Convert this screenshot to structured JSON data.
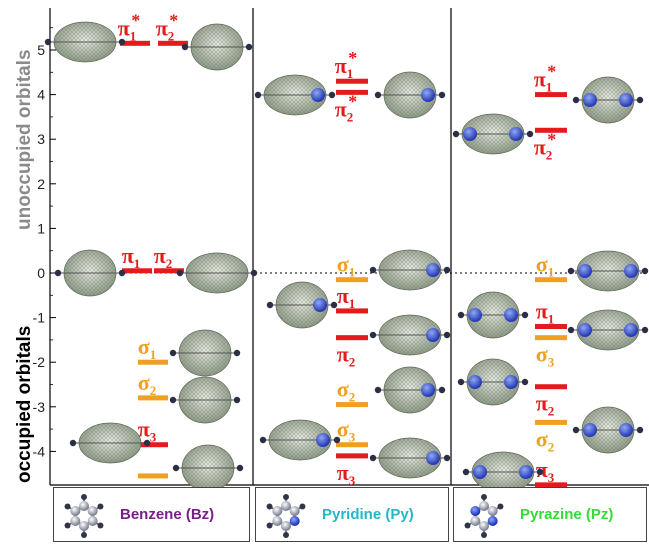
{
  "axis": {
    "ylabel_upper": "unoccupied orbitals",
    "ylabel_lower": "occupied orbitals",
    "ticks": [
      "5",
      "4",
      "3",
      "2",
      "1",
      "0",
      "-1",
      "-2",
      "-3",
      "-4"
    ]
  },
  "colors": {
    "pi_level": "#e41a1c",
    "sigma_level": "#f0a020",
    "ylabel_upper": "#8a8a8a",
    "ylabel_lower": "#000000",
    "benzene": "#7a1f8a",
    "pyridine": "#22b8c8",
    "pyrazine": "#33dd33"
  },
  "panels": [
    {
      "name": "Benzene (Bz)",
      "levels": [
        {
          "label": "π",
          "sub": "1",
          "star": true,
          "energy": 5.15,
          "kind": "pi"
        },
        {
          "label": "π",
          "sub": "2",
          "star": true,
          "energy": 5.15,
          "kind": "pi"
        },
        {
          "label": "π",
          "sub": "1",
          "star": false,
          "energy": 0.05,
          "kind": "pi"
        },
        {
          "label": "π",
          "sub": "2",
          "star": false,
          "energy": 0.05,
          "kind": "pi"
        },
        {
          "label": "σ",
          "sub": "1",
          "star": false,
          "energy": -2.0,
          "kind": "sigma"
        },
        {
          "label": "σ",
          "sub": "2",
          "star": false,
          "energy": -2.8,
          "kind": "sigma"
        },
        {
          "label": "π",
          "sub": "3",
          "star": false,
          "energy": -3.85,
          "kind": "pi"
        },
        {
          "label": "σ",
          "sub": "3",
          "star": false,
          "energy": -4.55,
          "kind": "sigma"
        }
      ]
    },
    {
      "name": "Pyridine (Py)",
      "levels": [
        {
          "label": "π",
          "sub": "1",
          "star": true,
          "energy": 4.3,
          "kind": "pi"
        },
        {
          "label": "π",
          "sub": "2",
          "star": true,
          "energy": 4.05,
          "kind": "pi"
        },
        {
          "label": "σ",
          "sub": "1",
          "star": false,
          "energy": -0.15,
          "kind": "sigma"
        },
        {
          "label": "π",
          "sub": "1",
          "star": false,
          "energy": -0.85,
          "kind": "pi"
        },
        {
          "label": "π",
          "sub": "2",
          "star": false,
          "energy": -1.45,
          "kind": "pi"
        },
        {
          "label": "σ",
          "sub": "2",
          "star": false,
          "energy": -2.95,
          "kind": "sigma"
        },
        {
          "label": "σ",
          "sub": "3",
          "star": false,
          "energy": -3.85,
          "kind": "sigma"
        },
        {
          "label": "π",
          "sub": "3",
          "star": false,
          "energy": -4.1,
          "kind": "pi"
        }
      ]
    },
    {
      "name": "Pyrazine (Pz)",
      "levels": [
        {
          "label": "π",
          "sub": "1",
          "star": true,
          "energy": 4.0,
          "kind": "pi"
        },
        {
          "label": "π",
          "sub": "2",
          "star": true,
          "energy": 3.2,
          "kind": "pi"
        },
        {
          "label": "σ",
          "sub": "1",
          "star": false,
          "energy": -0.15,
          "kind": "sigma"
        },
        {
          "label": "π",
          "sub": "1",
          "star": false,
          "energy": -1.2,
          "kind": "pi"
        },
        {
          "label": "σ",
          "sub": "3",
          "star": false,
          "energy": -1.45,
          "kind": "sigma"
        },
        {
          "label": "π",
          "sub": "2",
          "star": false,
          "energy": -2.55,
          "kind": "pi"
        },
        {
          "label": "σ",
          "sub": "2",
          "star": false,
          "energy": -3.35,
          "kind": "sigma"
        },
        {
          "label": "π",
          "sub": "3",
          "star": false,
          "energy": -4.75,
          "kind": "pi"
        }
      ]
    }
  ]
}
